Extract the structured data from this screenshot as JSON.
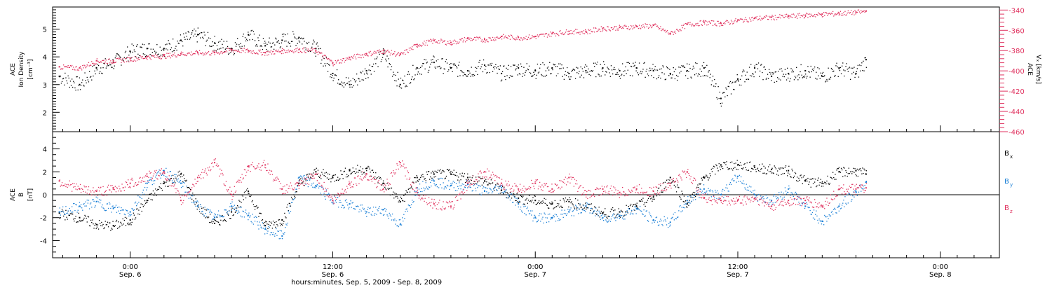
{
  "chart_data": [
    {
      "type": "scatter",
      "panel": "top",
      "ylabel_line1": "ACE",
      "ylabel_line2": "Ion Density",
      "ylabel_units": "[cm⁻³]",
      "ylim": [
        1.3,
        5.8
      ],
      "yticks": [
        2,
        3,
        4,
        5
      ],
      "y2label_line1": "ACE",
      "y2label_line2": "Vₓ [km/s]",
      "y2lim": [
        -460,
        -337
      ],
      "y2ticks": [
        -340,
        -360,
        -380,
        -400,
        -420,
        -440,
        -460
      ],
      "series": [
        {
          "name": "",
          "axis": "left",
          "color": "#000000",
          "x": [
            -4.2,
            -3.0,
            -2.0,
            -1.0,
            0.0,
            1.0,
            2.0,
            3.0,
            4.0,
            5.0,
            6.0,
            7.0,
            8.0,
            9.0,
            10.0,
            11.0,
            12.0,
            13.0,
            14.0,
            15.0,
            16.0,
            17.0,
            18.0,
            19.0,
            20.0,
            21.0,
            22.0,
            23.0,
            24.0,
            25.0,
            26.0,
            27.0,
            28.0,
            29.0,
            30.0,
            31.0,
            32.0,
            33.0,
            34.0,
            35.0,
            36.0,
            37.0,
            38.0,
            39.0,
            40.0,
            41.0,
            42.0,
            43.0,
            43.6
          ],
          "y": [
            3.3,
            3.0,
            3.6,
            3.8,
            4.2,
            4.3,
            4.3,
            4.6,
            4.8,
            4.5,
            4.3,
            4.8,
            4.4,
            4.6,
            4.7,
            4.3,
            3.4,
            3.0,
            3.5,
            4.1,
            3.0,
            3.6,
            3.8,
            3.6,
            3.5,
            3.7,
            3.4,
            3.6,
            3.5,
            3.6,
            3.4,
            3.5,
            3.6,
            3.5,
            3.6,
            3.5,
            3.4,
            3.5,
            3.6,
            2.5,
            3.2,
            3.6,
            3.3,
            3.4,
            3.5,
            3.3,
            3.6,
            3.4,
            3.9
          ]
        },
        {
          "name": "",
          "axis": "right",
          "color": "#e0325f",
          "x": [
            -4.2,
            -3.0,
            -2.0,
            -1.0,
            0.0,
            1.0,
            2.0,
            3.0,
            4.0,
            5.0,
            6.0,
            7.0,
            8.0,
            9.0,
            10.0,
            11.0,
            12.0,
            13.0,
            14.0,
            15.0,
            16.0,
            17.0,
            18.0,
            19.0,
            20.0,
            21.0,
            22.0,
            23.0,
            24.0,
            25.0,
            26.0,
            27.0,
            28.0,
            29.0,
            30.0,
            31.0,
            32.0,
            33.0,
            34.0,
            35.0,
            36.0,
            37.0,
            38.0,
            39.0,
            40.0,
            41.0,
            42.0,
            43.0,
            43.6
          ],
          "y": [
            -396,
            -397,
            -390,
            -390,
            -388,
            -386,
            -385,
            -383,
            -382,
            -382,
            -379,
            -380,
            -382,
            -380,
            -379,
            -380,
            -392,
            -387,
            -383,
            -380,
            -384,
            -374,
            -370,
            -372,
            -368,
            -369,
            -366,
            -367,
            -366,
            -363,
            -361,
            -361,
            -358,
            -357,
            -356,
            -355,
            -363,
            -354,
            -352,
            -353,
            -350,
            -348,
            -347,
            -346,
            -345,
            -344,
            -343,
            -342,
            -341
          ]
        }
      ]
    },
    {
      "type": "scatter",
      "panel": "bottom",
      "ylabel_line1": "ACE",
      "ylabel_line2": "B",
      "ylabel_units": "[nT]",
      "ylim": [
        -5.5,
        5.5
      ],
      "yticks": [
        -4,
        -2,
        0,
        2,
        4
      ],
      "zero_line": true,
      "legend_position": "right",
      "xlabel": "hours:minutes, Sep.  5, 2009 - Sep.  8, 2009",
      "xlim": [
        -4.6,
        51.5
      ],
      "xtick_positions": [
        0,
        12,
        24,
        36,
        48
      ],
      "xtick_labels": [
        "0:00",
        "12:00",
        "0:00",
        "12:00",
        "0:00"
      ],
      "xtick_sublabels": [
        "Sep. 6",
        "Sep. 6",
        "Sep. 7",
        "Sep. 7",
        "Sep. 8"
      ],
      "series": [
        {
          "name": "Bx",
          "legend_main": "B",
          "legend_sub": "x",
          "color": "#000000",
          "x": [
            -4.2,
            -3.0,
            -2.0,
            -1.0,
            0.0,
            1.0,
            2.0,
            3.0,
            4.0,
            5.0,
            6.0,
            7.0,
            8.0,
            9.0,
            10.0,
            11.0,
            12.0,
            13.0,
            14.0,
            15.0,
            16.0,
            17.0,
            18.0,
            19.0,
            20.0,
            21.0,
            22.0,
            23.0,
            24.0,
            25.0,
            26.0,
            27.0,
            28.0,
            29.0,
            30.0,
            31.0,
            32.0,
            33.0,
            34.0,
            35.0,
            36.0,
            37.0,
            38.0,
            39.0,
            40.0,
            41.0,
            42.0,
            43.0,
            43.6
          ],
          "y": [
            -1.6,
            -2.0,
            -2.6,
            -2.7,
            -2.2,
            -0.5,
            1.0,
            1.8,
            -1.0,
            -2.5,
            -1.5,
            0.3,
            -2.7,
            -2.2,
            1.0,
            2.0,
            1.5,
            2.1,
            2.3,
            1.0,
            -0.6,
            1.5,
            1.8,
            1.8,
            1.5,
            1.2,
            0.4,
            -0.3,
            -0.5,
            -0.8,
            -0.6,
            -1.0,
            -1.6,
            -1.5,
            -1.0,
            -0.2,
            1.5,
            -0.8,
            1.5,
            2.6,
            2.6,
            2.4,
            2.2,
            2.1,
            1.2,
            1.0,
            2.0,
            2.1,
            1.8
          ]
        },
        {
          "name": "By",
          "legend_main": "B",
          "legend_sub": "y",
          "color": "#1a7fd6",
          "x": [
            -4.2,
            -3.0,
            -2.0,
            -1.0,
            0.0,
            1.0,
            2.0,
            3.0,
            4.0,
            5.0,
            6.0,
            7.0,
            8.0,
            9.0,
            10.0,
            11.0,
            12.0,
            13.0,
            14.0,
            15.0,
            16.0,
            17.0,
            18.0,
            19.0,
            20.0,
            21.0,
            22.0,
            23.0,
            24.0,
            25.0,
            26.0,
            27.0,
            28.0,
            29.0,
            30.0,
            31.0,
            32.0,
            33.0,
            34.0,
            35.0,
            36.0,
            37.0,
            38.0,
            39.0,
            40.0,
            41.0,
            42.0,
            43.0,
            43.6
          ],
          "y": [
            -1.5,
            -1.0,
            -0.6,
            -1.2,
            -1.5,
            1.0,
            2.1,
            1.0,
            -1.0,
            -2.0,
            -1.0,
            -1.8,
            -3.0,
            -3.6,
            1.5,
            0.8,
            -0.5,
            -0.8,
            -1.5,
            -1.3,
            -2.6,
            0.6,
            1.2,
            0.8,
            0.9,
            0.3,
            0.6,
            -0.8,
            -2.0,
            -2.0,
            -1.5,
            -1.0,
            -2.0,
            -1.8,
            -1.2,
            -2.2,
            -2.4,
            -0.5,
            0.5,
            0.0,
            1.6,
            0.0,
            -0.5,
            0.5,
            -1.0,
            -2.3,
            -1.0,
            0.3,
            1.1
          ]
        },
        {
          "name": "Bz",
          "legend_main": "B",
          "legend_sub": "z",
          "color": "#e0325f",
          "x": [
            -4.2,
            -3.0,
            -2.0,
            -1.0,
            0.0,
            1.0,
            2.0,
            3.0,
            4.0,
            5.0,
            6.0,
            7.0,
            8.0,
            9.0,
            10.0,
            11.0,
            12.0,
            13.0,
            14.0,
            15.0,
            16.0,
            17.0,
            18.0,
            19.0,
            20.0,
            21.0,
            22.0,
            23.0,
            24.0,
            25.0,
            26.0,
            27.0,
            28.0,
            29.0,
            30.0,
            31.0,
            32.0,
            33.0,
            34.0,
            35.0,
            36.0,
            37.0,
            38.0,
            39.0,
            40.0,
            41.0,
            42.0,
            43.0,
            43.6
          ],
          "y": [
            1.2,
            0.5,
            0.3,
            0.5,
            1.0,
            1.6,
            2.0,
            -0.5,
            1.5,
            2.8,
            0.0,
            2.5,
            2.6,
            0.5,
            0.8,
            1.8,
            -0.5,
            1.0,
            1.8,
            0.5,
            2.8,
            0.2,
            -0.8,
            -1.0,
            1.0,
            2.0,
            1.0,
            0.5,
            1.0,
            0.5,
            1.5,
            0.0,
            0.5,
            0.2,
            0.5,
            0.3,
            1.0,
            2.0,
            -0.3,
            -0.5,
            -0.5,
            -0.3,
            -1.0,
            -0.5,
            -0.5,
            -1.0,
            0.5,
            0.5,
            0.6
          ]
        }
      ]
    }
  ]
}
